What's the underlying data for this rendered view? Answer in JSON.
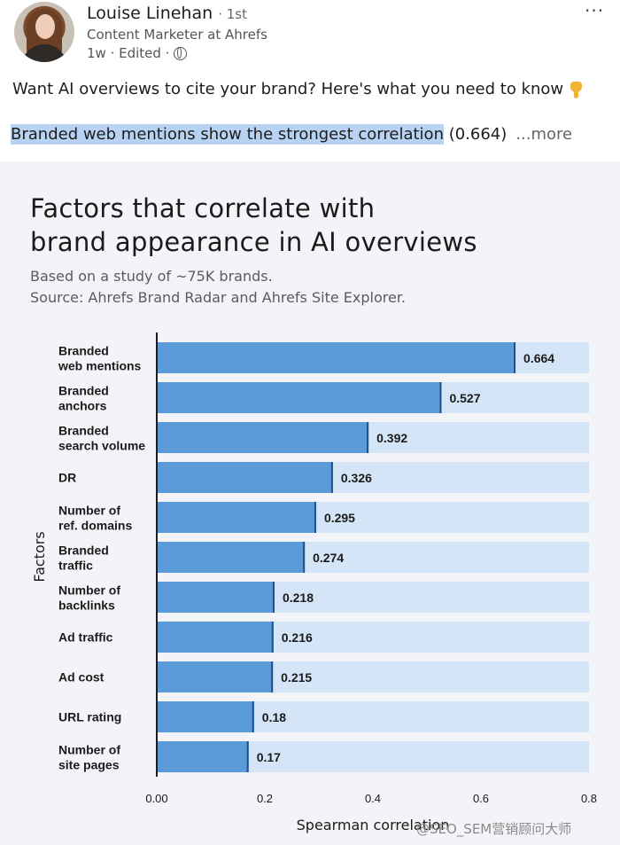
{
  "post": {
    "author_name": "Louise Linehan",
    "connection_degree": "· 1st",
    "headline": "Content Marketer at Ahrefs",
    "time_edited": "1w · Edited ·",
    "menu_label": "···",
    "text_line1": "Want AI overviews to cite your brand? Here's what you need to know",
    "text_highlight": "Branded web mentions show the strongest correlation",
    "text_value": " (0.664)",
    "see_more": "...more",
    "icons": {
      "avatar": "avatar",
      "globe": "globe-icon",
      "pointing": "pointing-down-icon"
    }
  },
  "chart_data": {
    "type": "bar",
    "orientation": "horizontal",
    "title_line1": "Factors that correlate with",
    "title_line2": "brand appearance in AI overviews",
    "subtitle_line1": "Based on a study of ~75K brands.",
    "subtitle_line2": "Source: Ahrefs Brand Radar and Ahrefs Site Explorer.",
    "xlabel": "Spearman correlation",
    "ylabel": "Factors",
    "xlim": [
      0,
      0.8
    ],
    "x_ticks": [
      "0.00",
      "0.2",
      "0.4",
      "0.6",
      "0.8"
    ],
    "x_tick_values": [
      0,
      0.2,
      0.4,
      0.6,
      0.8
    ],
    "grid": false,
    "categories": [
      [
        "Branded",
        "web mentions"
      ],
      [
        "Branded",
        "anchors"
      ],
      [
        "Branded",
        "search volume"
      ],
      [
        "DR"
      ],
      [
        "Number of",
        "ref. domains"
      ],
      [
        "Branded",
        "traffic"
      ],
      [
        "Number of",
        "backlinks"
      ],
      [
        "Ad traffic"
      ],
      [
        "Ad cost"
      ],
      [
        "URL rating"
      ],
      [
        "Number of",
        "site pages"
      ]
    ],
    "values": [
      0.664,
      0.527,
      0.392,
      0.326,
      0.295,
      0.274,
      0.218,
      0.216,
      0.215,
      0.18,
      0.17
    ],
    "value_labels": [
      "0.664",
      "0.527",
      "0.392",
      "0.326",
      "0.295",
      "0.274",
      "0.218",
      "0.216",
      "0.215",
      "0.18",
      "0.17"
    ],
    "colors": {
      "bar": "#5b9ad8",
      "bar_edge": "#1f4f8a",
      "track": "#d4e5f8",
      "axis": "#1b1b1b"
    }
  },
  "watermark": "@SEO_SEM营销顾问大师"
}
